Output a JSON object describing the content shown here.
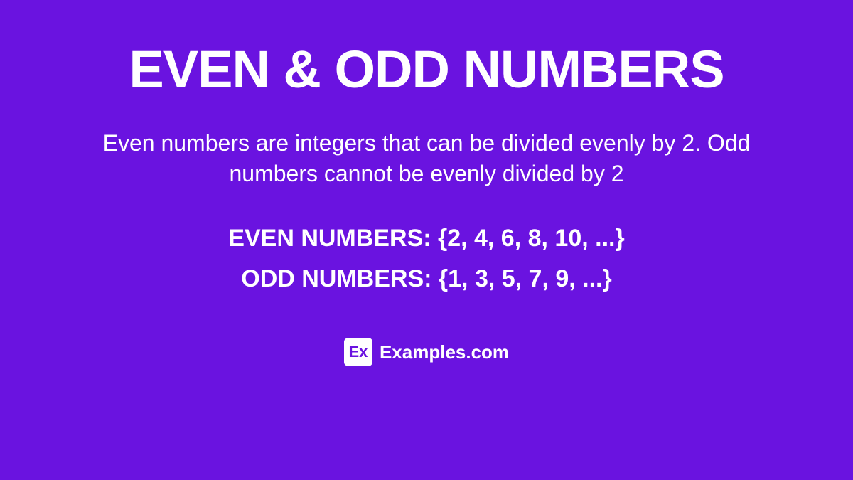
{
  "background_color": "#6a13e0",
  "text_color": "#ffffff",
  "title": {
    "text": "EVEN & ODD NUMBERS",
    "fontsize": 74,
    "font_weight": 900,
    "color": "#ffffff"
  },
  "description": {
    "text": "Even numbers are integers that can be divided evenly by 2. Odd numbers cannot be evenly divided by 2",
    "fontsize": 32,
    "font_weight": 400,
    "color": "#ffffff"
  },
  "examples": {
    "even": {
      "text": "EVEN NUMBERS: {2, 4, 6, 8, 10, ...}",
      "fontsize": 34,
      "font_weight": 800,
      "color": "#ffffff"
    },
    "odd": {
      "text": "ODD NUMBERS: {1, 3, 5, 7, 9, ...}",
      "fontsize": 34,
      "font_weight": 800,
      "color": "#ffffff"
    }
  },
  "footer": {
    "logo": {
      "text": "Ex",
      "bg_color": "#ffffff",
      "text_color": "#6a13e0",
      "width": 40,
      "height": 40,
      "fontsize": 22,
      "border_radius": 6
    },
    "label": {
      "text": "Examples.com",
      "fontsize": 26,
      "font_weight": 700,
      "color": "#ffffff"
    }
  }
}
